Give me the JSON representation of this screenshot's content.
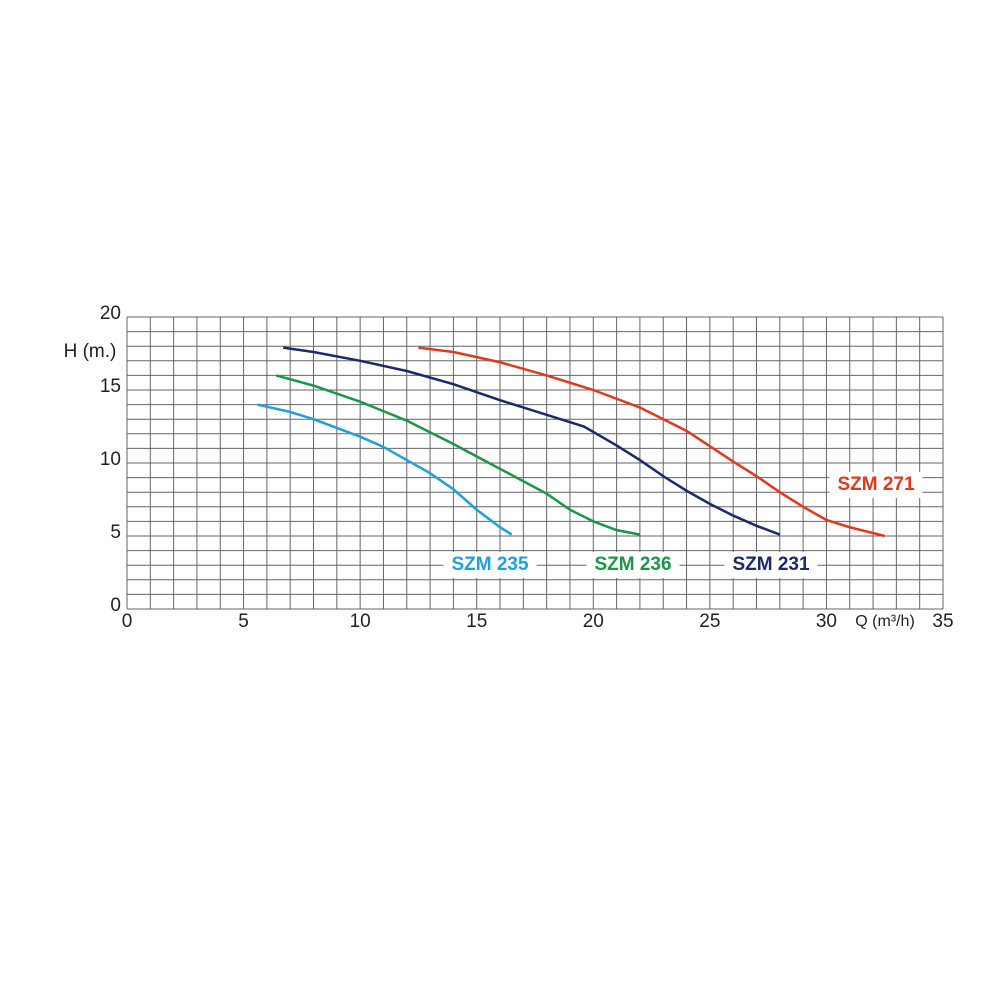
{
  "chart_data": {
    "type": "line",
    "x_label": "Q (m³/h)",
    "y_label": "H (m.)",
    "xlim": [
      0,
      35
    ],
    "ylim": [
      0,
      20
    ],
    "xticks": [
      0,
      5,
      10,
      15,
      20,
      25,
      30,
      35
    ],
    "yticks": [
      0,
      5,
      10,
      15,
      20
    ],
    "xgrid": [
      0,
      1,
      2,
      3,
      4,
      5,
      6,
      7,
      8,
      9,
      10,
      11,
      12,
      13,
      14,
      15,
      16,
      17,
      18,
      19,
      20,
      21,
      22,
      23,
      24,
      25,
      26,
      27,
      28,
      29,
      30,
      31,
      32,
      33,
      34,
      35
    ],
    "ygrid": [
      0,
      1,
      2,
      3,
      4,
      5,
      6,
      7,
      8,
      9,
      10,
      11,
      12,
      13,
      14,
      15,
      16,
      17,
      18,
      19,
      20
    ],
    "series": [
      {
        "name": "SZM 235",
        "color": "#1ea0dc",
        "x": [
          5.6,
          7,
          8,
          9,
          10,
          11,
          12,
          13,
          14,
          15,
          16,
          16.5
        ],
        "values": [
          14,
          13.5,
          13,
          12.4,
          11.8,
          11.1,
          10.2,
          9.3,
          8.2,
          6.8,
          5.6,
          5.1
        ]
      },
      {
        "name": "SZM 236",
        "color": "#1b9646",
        "x": [
          6.4,
          8,
          10,
          12,
          14,
          16,
          18,
          19,
          20,
          21,
          22
        ],
        "values": [
          16,
          15.3,
          14.2,
          12.9,
          11.3,
          9.6,
          7.9,
          6.8,
          6,
          5.4,
          5.1
        ]
      },
      {
        "name": "SZM 231",
        "color": "#1c2a6b",
        "x": [
          6.7,
          8,
          10,
          12,
          14,
          16,
          18,
          19.6,
          21,
          22,
          23,
          24,
          25,
          26,
          27,
          28
        ],
        "values": [
          17.9,
          17.6,
          17,
          16.3,
          15.4,
          14.3,
          13.3,
          12.5,
          11.2,
          10.2,
          9.1,
          8.1,
          7.2,
          6.4,
          5.7,
          5.1
        ]
      },
      {
        "name": "SZM 271",
        "color": "#e03a1e",
        "x": [
          12.5,
          14,
          16,
          18,
          20,
          22,
          24,
          26,
          27,
          28,
          29,
          30,
          31,
          32,
          32.5
        ],
        "values": [
          17.9,
          17.6,
          16.9,
          16,
          15,
          13.8,
          12.2,
          10.1,
          9.1,
          8,
          7,
          6.1,
          5.6,
          5.2,
          5
        ]
      }
    ]
  }
}
